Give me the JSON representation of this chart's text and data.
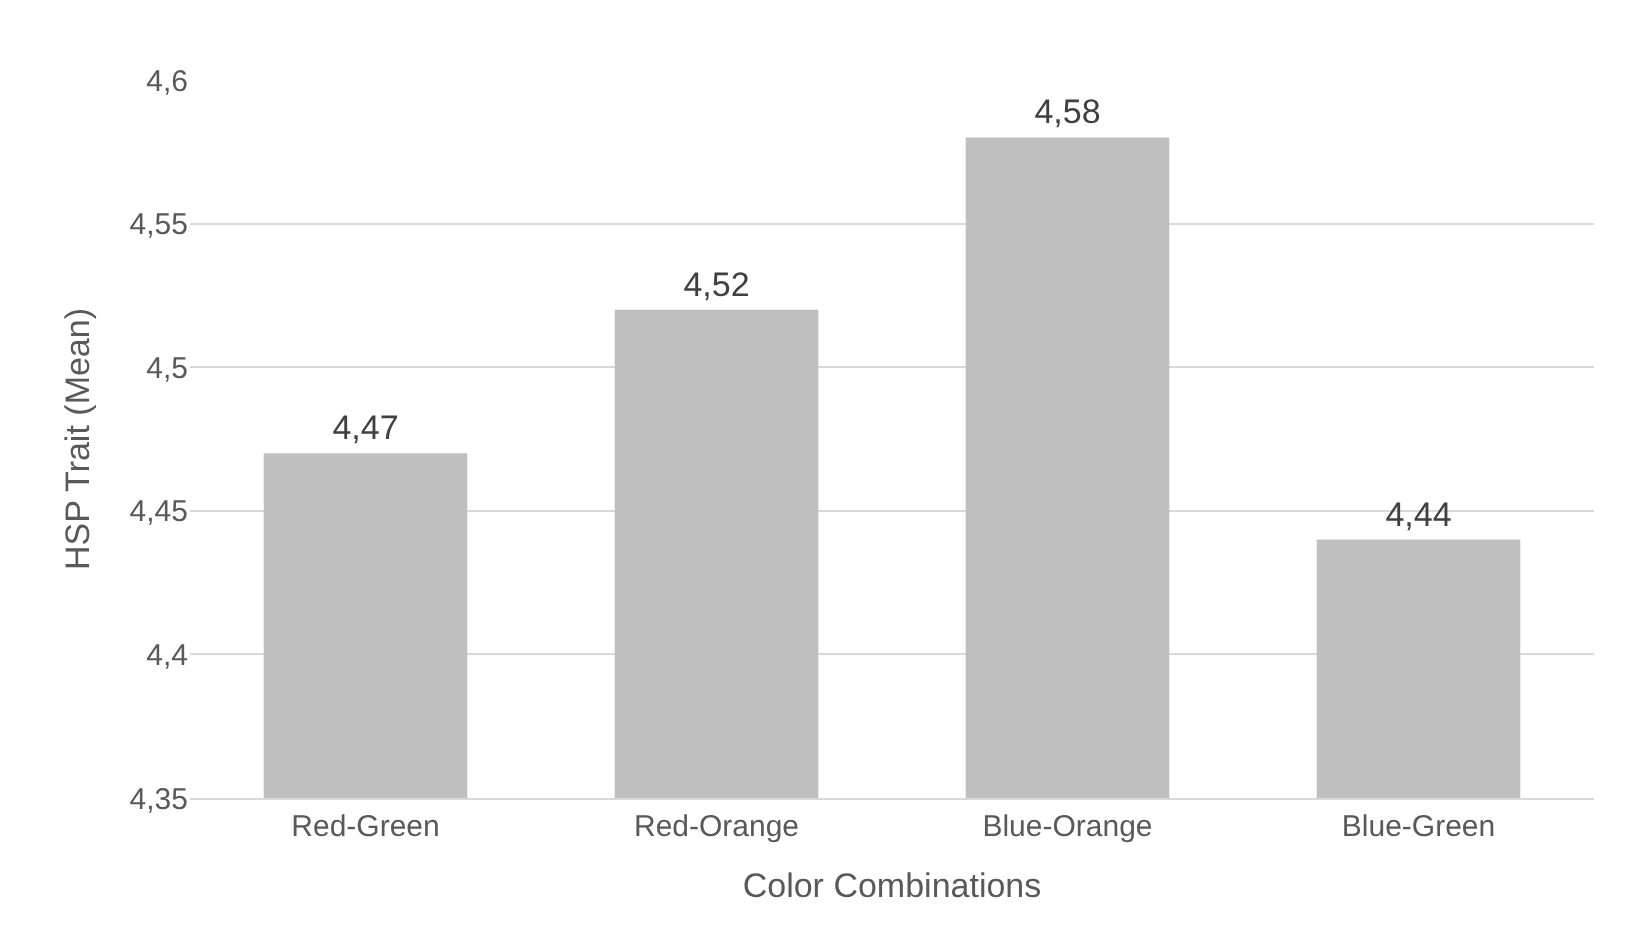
{
  "chart_data": {
    "type": "bar",
    "xlabel": "Color Combinations",
    "ylabel": "HSP Trait (Mean)",
    "categories": [
      "Red-Green",
      "Red-Orange",
      "Blue-Orange",
      "Blue-Green"
    ],
    "values": [
      4.47,
      4.52,
      4.58,
      4.44
    ],
    "value_labels": [
      "4,47",
      "4,52",
      "4,58",
      "4,44"
    ],
    "color": "#bfbfbf",
    "ylim": [
      4.35,
      4.6
    ],
    "yticks": [
      {
        "value": 4.35,
        "label": "4,35"
      },
      {
        "value": 4.4,
        "label": "4,4"
      },
      {
        "value": 4.45,
        "label": "4,45"
      },
      {
        "value": 4.5,
        "label": "4,5"
      },
      {
        "value": 4.55,
        "label": "4,55"
      },
      {
        "value": 4.6,
        "label": "4,6"
      }
    ],
    "grid": "y"
  }
}
